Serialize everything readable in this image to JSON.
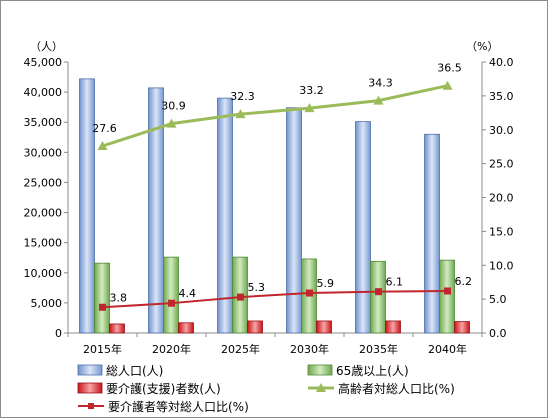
{
  "chart_data": {
    "type": "bar",
    "categories": [
      "2015年",
      "2020年",
      "2025年",
      "2030年",
      "2035年",
      "2040年"
    ],
    "y_left_unit": "（人）",
    "y_right_unit": "（%）",
    "y_left_ticks": [
      "0",
      "5,000",
      "10,000",
      "15,000",
      "20,000",
      "25,000",
      "30,000",
      "35,000",
      "40,000",
      "45,000"
    ],
    "y_right_ticks": [
      "0.0",
      "5.0",
      "10.0",
      "15.0",
      "20.0",
      "25.0",
      "30.0",
      "35.0",
      "40.0"
    ],
    "ylim_left": [
      0,
      45000
    ],
    "ylim_right": [
      0,
      40
    ],
    "grid": false,
    "legend_position": "bottom",
    "bar_series": [
      {
        "name": "総人口(人)",
        "values": [
          42200,
          40700,
          39000,
          37400,
          35100,
          33000
        ],
        "color": "#a8c4ec"
      },
      {
        "name": "65歳以上(人)",
        "values": [
          11600,
          12600,
          12600,
          12300,
          11900,
          12100
        ],
        "color": "#9fce7f"
      },
      {
        "name": "要介護(支援)者数(人)",
        "values": [
          1500,
          1700,
          2000,
          2000,
          2000,
          1900
        ],
        "color": "#e23b3b"
      }
    ],
    "line_series": [
      {
        "name": "高齢者対総人口比(%)",
        "values": [
          27.6,
          30.9,
          32.3,
          33.2,
          34.3,
          36.5
        ],
        "labels": [
          "27.6",
          "30.9",
          "32.3",
          "33.2",
          "34.3",
          "36.5"
        ],
        "color": "#9bbb59",
        "marker": "triangle"
      },
      {
        "name": "要介護者等対総人口比(%)",
        "values": [
          3.8,
          4.4,
          5.3,
          5.9,
          6.1,
          6.2
        ],
        "labels": [
          "3.8",
          "4.4",
          "5.3",
          "5.9",
          "6.1",
          "6.2"
        ],
        "color": "#c0262c",
        "marker": "square"
      }
    ]
  }
}
